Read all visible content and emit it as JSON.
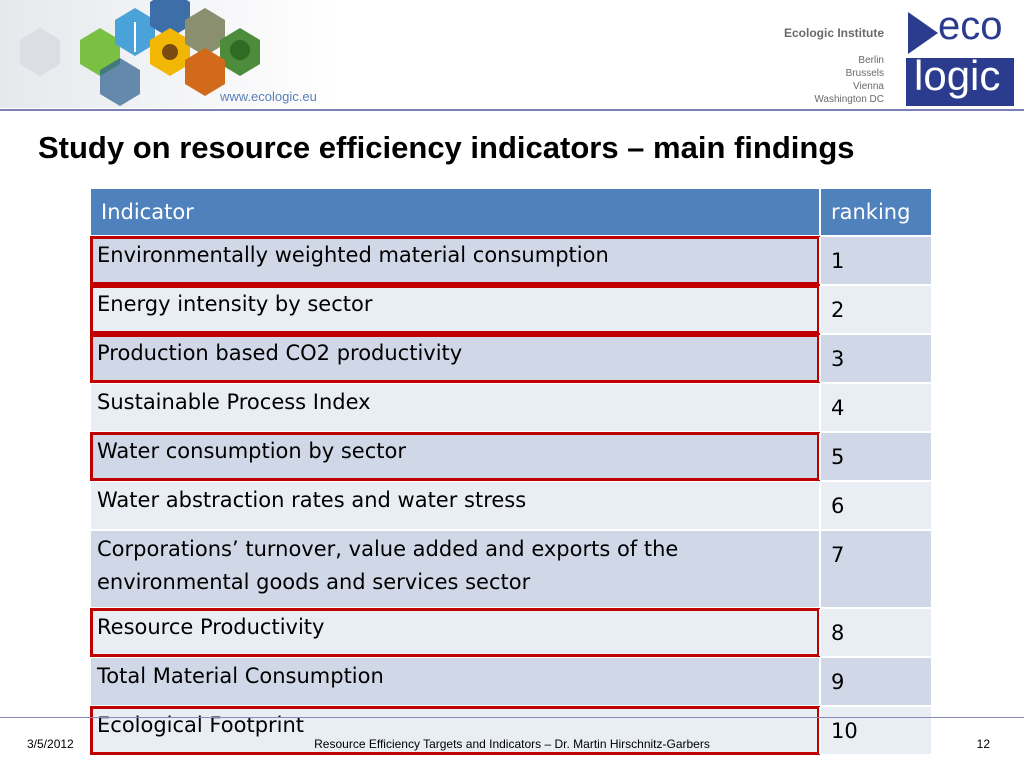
{
  "header": {
    "website": "www.ecologic.eu",
    "institute_name": "Ecologic Institute",
    "cities": [
      "Berlin",
      "Brussels",
      "Vienna",
      "Washington DC"
    ],
    "logo_top": "eco",
    "logo_bottom": "logic"
  },
  "slide": {
    "title": "Study on resource efficiency indicators – main findings"
  },
  "table": {
    "headers": {
      "indicator": "Indicator",
      "ranking": "ranking"
    },
    "rows": [
      {
        "indicator": "Environmentally weighted material consumption",
        "ranking": "1",
        "highlighted": true
      },
      {
        "indicator": "Energy intensity by sector",
        "ranking": "2",
        "highlighted": true
      },
      {
        "indicator": "Production based CO2 productivity",
        "ranking": "3",
        "highlighted": true
      },
      {
        "indicator": "Sustainable Process Index",
        "ranking": "4",
        "highlighted": false
      },
      {
        "indicator": "Water consumption by sector",
        "ranking": "5",
        "highlighted": true
      },
      {
        "indicator": "Water abstraction rates and water stress",
        "ranking": "6",
        "highlighted": false
      },
      {
        "indicator": "Corporations’ turnover, value added and exports of the environmental goods and services sector",
        "ranking": "7",
        "highlighted": false
      },
      {
        "indicator": "Resource Productivity",
        "ranking": "8",
        "highlighted": true
      },
      {
        "indicator": "Total Material Consumption",
        "ranking": "9",
        "highlighted": false
      },
      {
        "indicator": "Ecological Footprint",
        "ranking": "10",
        "highlighted": true
      }
    ]
  },
  "footer": {
    "date": "3/5/2012",
    "center": "Resource Efficiency Targets and Indicators – Dr. Martin Hirschnitz-Garbers",
    "page": "12"
  },
  "colors": {
    "header_fill": "#4f81bd",
    "row_dark": "#d0d8e8",
    "row_light": "#e9edf4",
    "highlight_border": "#c00000",
    "logo_blue": "#2b3c8e"
  }
}
